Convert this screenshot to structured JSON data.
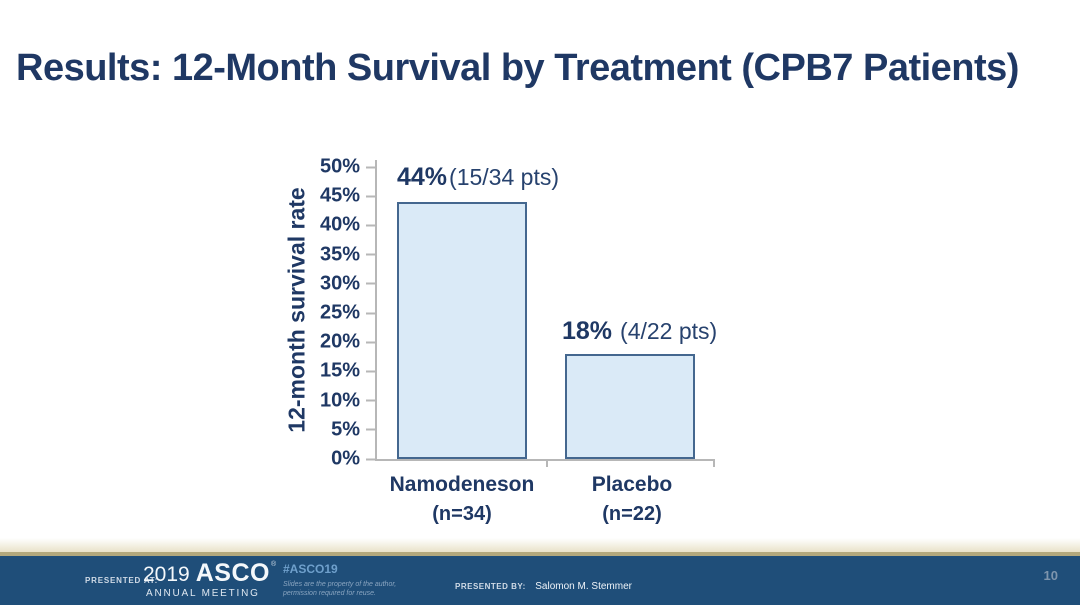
{
  "slide": {
    "title": "Results: 12-Month Survival by Treatment (CPB7 Patients)"
  },
  "chart_data": {
    "type": "bar",
    "title": "",
    "xlabel": "",
    "ylabel": "12-month survival rate",
    "categories": [
      "Namodeneson",
      "Placebo"
    ],
    "category_sublabels": [
      "(n=34)",
      "(n=22)"
    ],
    "values": [
      44,
      18
    ],
    "annotations": [
      {
        "pct": "44%",
        "detail": "(15/34 pts)"
      },
      {
        "pct": "18%",
        "detail": "(4/22 pts)"
      }
    ],
    "ylim": [
      0,
      50
    ],
    "ytick_step": 5,
    "ytick_labels": [
      "0%",
      "5%",
      "10%",
      "15%",
      "20%",
      "25%",
      "30%",
      "35%",
      "40%",
      "45%",
      "50%"
    ],
    "grid": false,
    "legend_position": "none"
  },
  "footer": {
    "presented_at_label": "PRESENTED AT:",
    "logo_year": "2019",
    "logo_name": "ASCO",
    "logo_mark": "®",
    "logo_sub": "ANNUAL MEETING",
    "hashtag": "#ASCO19",
    "disclaimer_line1": "Slides are the property of the author,",
    "disclaimer_line2": "permission required for reuse.",
    "presented_by_label": "PRESENTED BY:",
    "presented_by_name": "Salomon M. Stemmer",
    "page_number": "10"
  },
  "colors": {
    "title": "#1f3864",
    "axis_text": "#1f3864",
    "axis_line": "#b7b7b7",
    "bar_fill": "#daeaf7",
    "bar_border": "#44678f",
    "footer_bg": "#1f4e79",
    "gold_line": "#b2a87d",
    "hashtag_blue": "#6fa0cc"
  }
}
